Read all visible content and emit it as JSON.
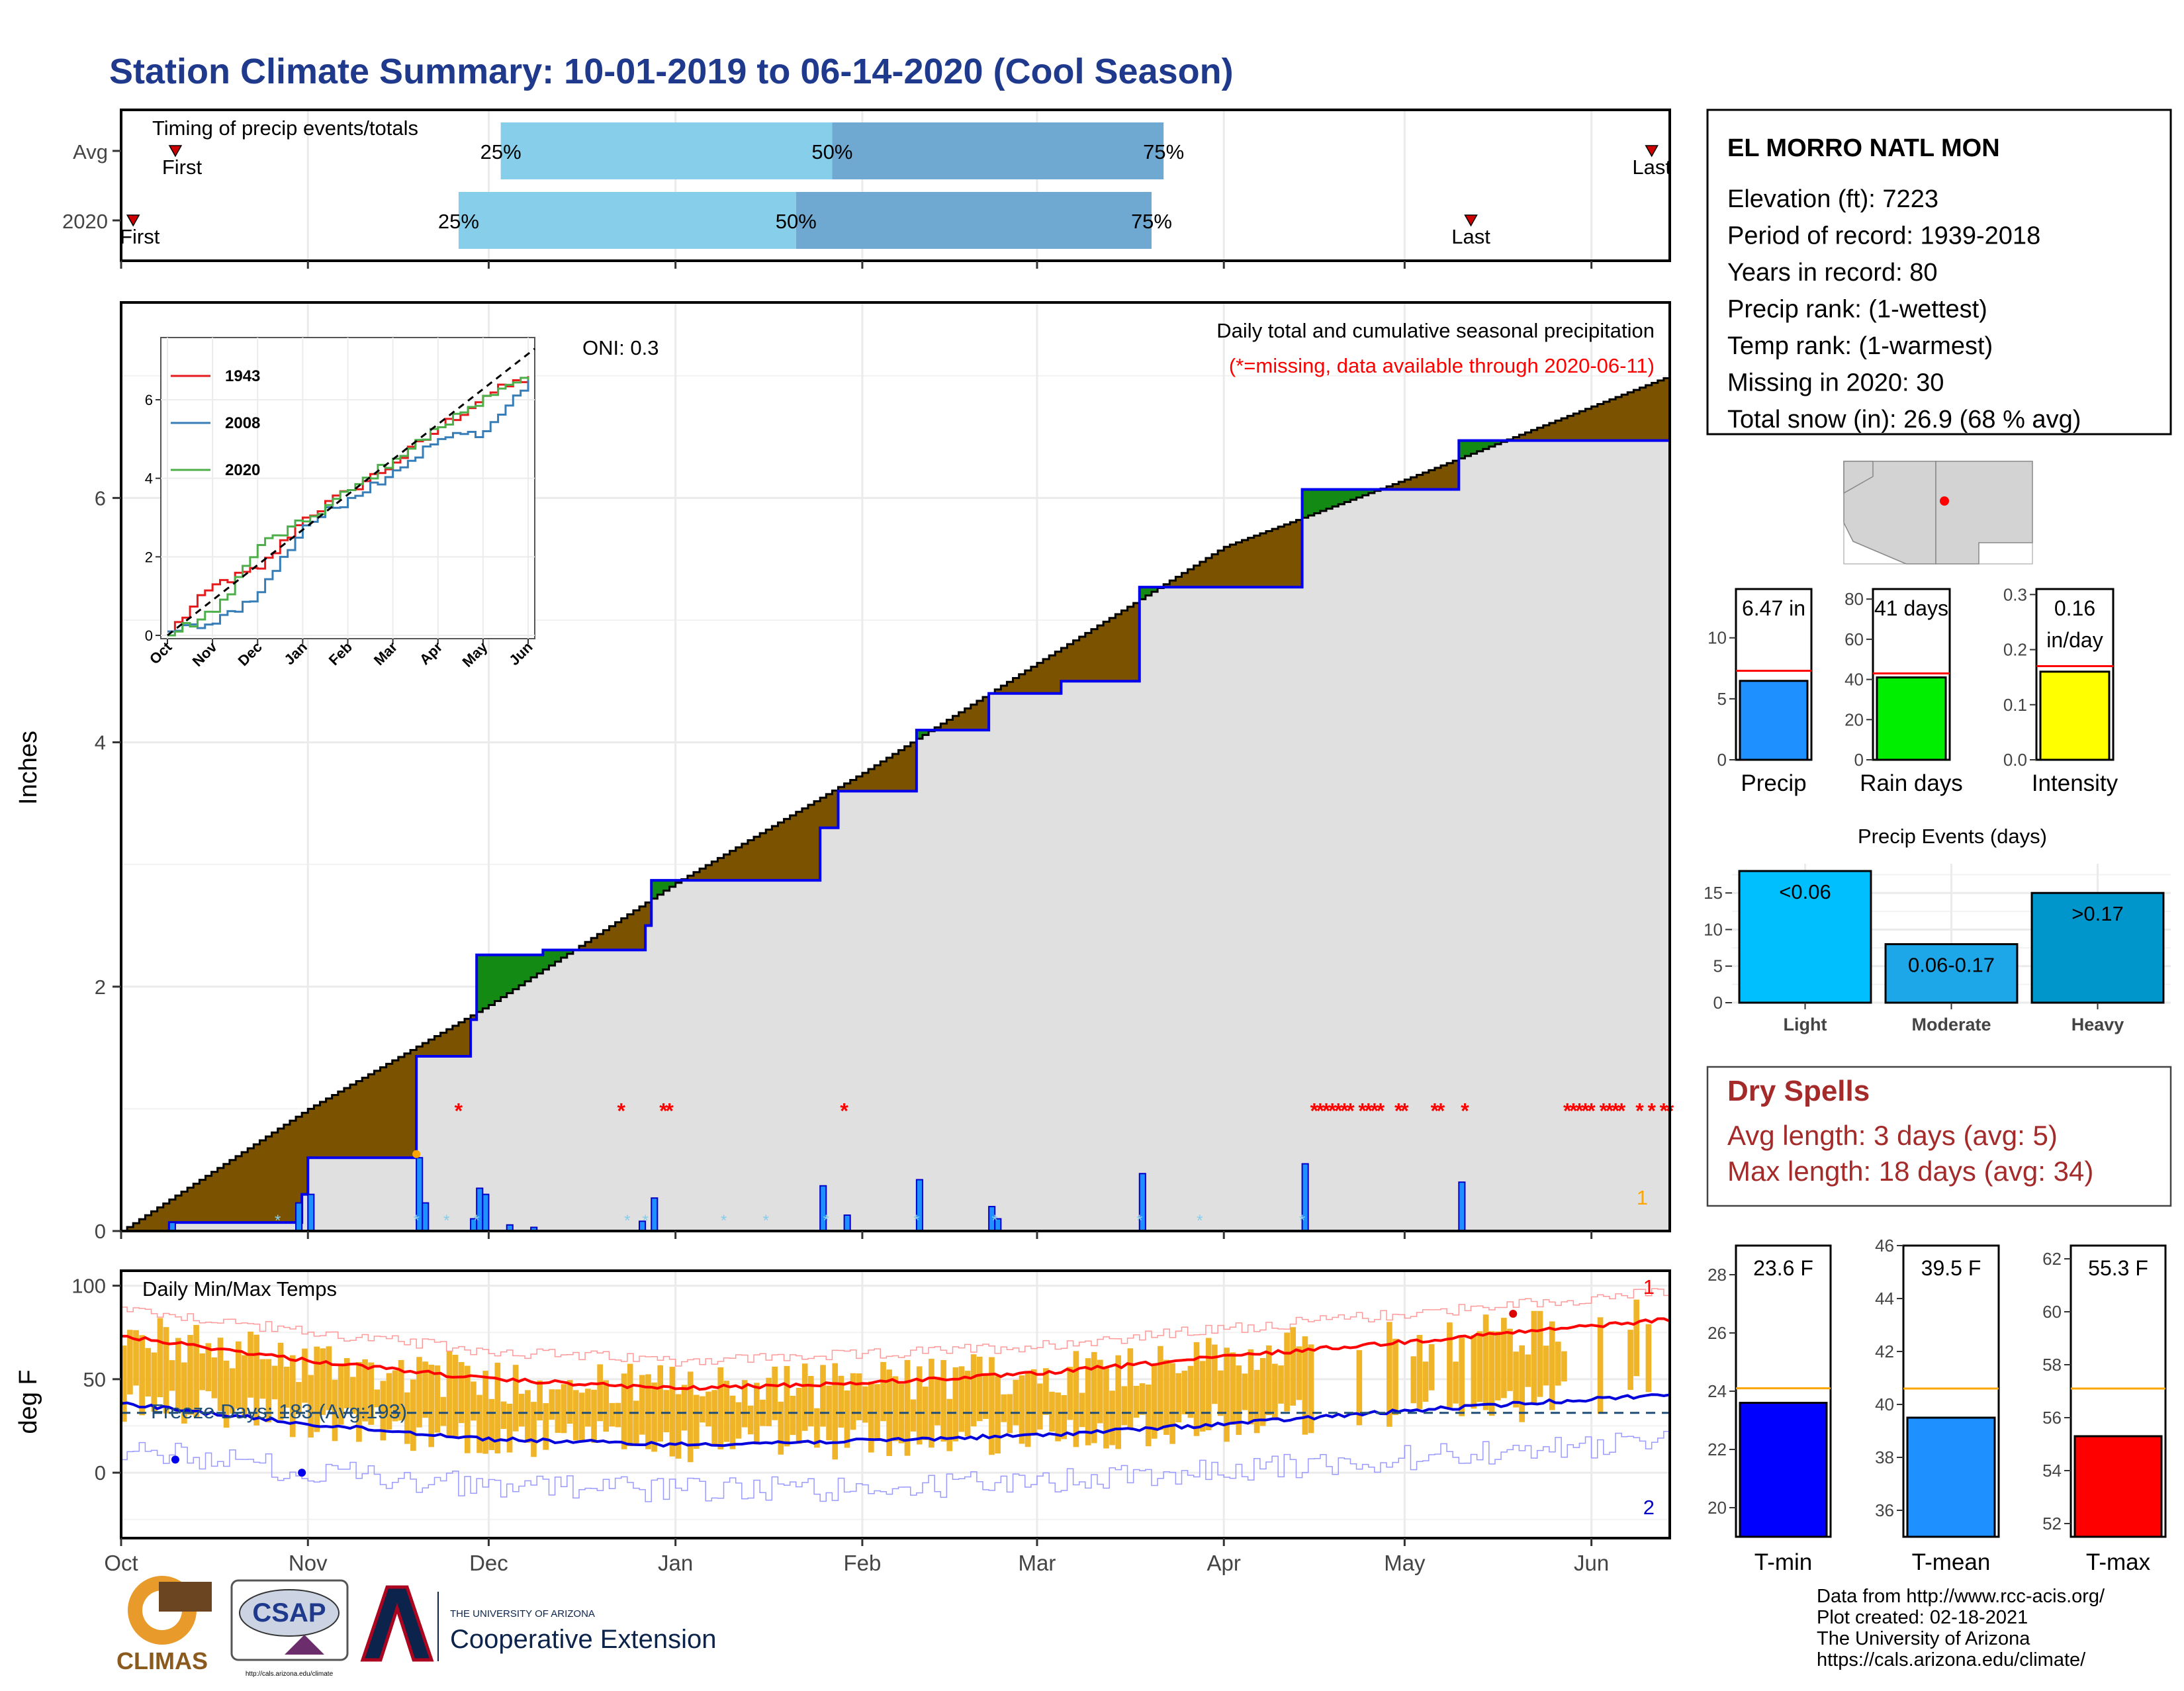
{
  "title": "Station Climate Summary: 10-01-2019 to 06-14-2020 (Cool Season)",
  "colors": {
    "title": "#1f3a8c",
    "brown": "#7a5200",
    "green": "#138a13",
    "gray_fill": "#e0e0e0",
    "blue": "#0000ee",
    "light_blue_bar": "#87ceeb",
    "mid_blue_bar": "#6fa8d0",
    "missing_red": "#ff0000",
    "temp_orange": "#f0b428",
    "tmax_red": "#ff0000",
    "tmin_blue": "#0000dd",
    "dry_spell_red": "#a52a2a"
  },
  "months": [
    "Oct",
    "Nov",
    "Dec",
    "Jan",
    "Feb",
    "Mar",
    "Apr",
    "May",
    "Jun"
  ],
  "timing_panel": {
    "title": "Timing of precip events/totals",
    "rows": [
      {
        "label": "Avg",
        "first_label": "First",
        "last_label": "Last",
        "p25": "25%",
        "p50": "50%",
        "p75": "75%"
      },
      {
        "label": "2020",
        "first_label": "First",
        "last_label": "Last",
        "p25": "25%",
        "p50": "50%",
        "p75": "75%"
      }
    ]
  },
  "station_box": {
    "name": "EL MORRO NATL MON",
    "lines": [
      "Elevation (ft): 7223",
      "Period of record: 1939-2018",
      "Years in record: 80",
      "Precip rank:  (1-wettest)",
      "Temp rank:  (1-warmest)",
      "Missing in 2020: 30",
      "Total snow (in): 26.9 (68 % avg)"
    ]
  },
  "precip_panel": {
    "ylabel": "Inches",
    "oni": "ONI: 0.3",
    "title": "Daily total and cumulative seasonal precipitation",
    "subtitle": "(*=missing, data available through 2020-06-11)",
    "corner_label": "1",
    "y_ticks": [
      "0",
      "2",
      "4",
      "6"
    ]
  },
  "inset": {
    "y_ticks": [
      "0",
      "2",
      "4",
      "6"
    ],
    "x_ticks": [
      "Oct",
      "Nov",
      "Dec",
      "Jan",
      "Feb",
      "Mar",
      "Apr",
      "May",
      "Jun"
    ],
    "legend": [
      "1943",
      "2008",
      "2020"
    ],
    "legend_colors": [
      "#e41a1c",
      "#377eb8",
      "#4daf4a"
    ]
  },
  "temp_panel": {
    "ylabel": "deg F",
    "title": "Daily Min/Max Temps",
    "freeze_label": "Freeze Days: 183 (Avg:193)",
    "corner_top": "1",
    "corner_bottom": "2",
    "y_ticks": [
      "0",
      "50",
      "100"
    ]
  },
  "mini_bars": [
    {
      "value_label": "6.47 in",
      "xlabel": "Precip",
      "y_ticks": [
        "0",
        "5",
        "10"
      ],
      "color": "#1e90ff"
    },
    {
      "value_label": "41 days",
      "xlabel": "Rain days",
      "y_ticks": [
        "0",
        "20",
        "40",
        "60",
        "80"
      ],
      "color": "#00ee00"
    },
    {
      "value_label_1": "0.16",
      "value_label_2": "in/day",
      "xlabel": "Intensity",
      "y_ticks": [
        "0.0",
        "0.1",
        "0.2",
        "0.3"
      ],
      "color": "#ffff00"
    }
  ],
  "events_panel": {
    "title": "Precip Events (days)",
    "y_ticks": [
      "0",
      "5",
      "10",
      "15"
    ],
    "bars": [
      {
        "label": "<0.06",
        "xlabel": "Light",
        "color": "#00bfff"
      },
      {
        "label": "0.06-0.17",
        "xlabel": "Moderate",
        "color": "#1ea7e8"
      },
      {
        "label": ">0.17",
        "xlabel": "Heavy",
        "color": "#0096cc"
      }
    ]
  },
  "dry_spells": {
    "title": "Dry Spells",
    "avg_line": "Avg length: 3 days (avg: 5)",
    "max_line": "Max length: 18 days (avg: 34)"
  },
  "temp_bars": [
    {
      "value_label": "23.6 F",
      "xlabel": "T-min",
      "y_ticks": [
        "20",
        "22",
        "24",
        "26",
        "28"
      ],
      "color": "#0000ff"
    },
    {
      "value_label": "39.5 F",
      "xlabel": "T-mean",
      "y_ticks": [
        "36",
        "38",
        "40",
        "42",
        "44",
        "46"
      ],
      "color": "#1e90ff"
    },
    {
      "value_label": "55.3 F",
      "xlabel": "T-max",
      "y_ticks": [
        "52",
        "54",
        "56",
        "58",
        "60",
        "62"
      ],
      "color": "#ff0000"
    }
  ],
  "footer": {
    "lines": [
      "Data from http://www.rcc-acis.org/",
      "Plot created: 02-18-2021",
      "The University of Arizona",
      "https://cals.arizona.edu/climate/"
    ],
    "climas": "CLIMAS",
    "csap": "CSAP",
    "csap_url": "http://cals.arizona.edu/climate",
    "ua_top": "THE UNIVERSITY OF ARIZONA",
    "ua_bottom": "Cooperative Extension"
  },
  "chart_data": [
    {
      "type": "timing",
      "name": "Timing of precip events/totals",
      "rows": [
        {
          "label": "Avg",
          "first": "Oct 10",
          "p25": "Dec 3",
          "p50": "Jan 27",
          "p75": "Mar 22",
          "last": "Jun 11"
        },
        {
          "label": "2020",
          "first": "Oct 3",
          "p25": "Nov 26",
          "p50": "Jan 21",
          "p75": "Mar 20",
          "last": "May 12"
        }
      ]
    },
    {
      "type": "area",
      "title": "Daily total and cumulative seasonal precipitation",
      "ylabel": "Inches",
      "ylim": [
        0,
        7.6
      ],
      "x_start": "2019-10-01",
      "x_end": "2020-06-14",
      "avg_cumulative": [
        [
          "2019-10-01",
          0
        ],
        [
          "2019-11-01",
          1.0
        ],
        [
          "2019-12-01",
          1.85
        ],
        [
          "2020-01-01",
          2.85
        ],
        [
          "2020-02-01",
          3.75
        ],
        [
          "2020-03-01",
          4.65
        ],
        [
          "2020-04-01",
          5.6
        ],
        [
          "2020-05-01",
          6.15
        ],
        [
          "2020-06-14",
          7.0
        ]
      ],
      "cumulative_2020_steps": [
        [
          "2019-10-01",
          0
        ],
        [
          "2019-10-09",
          0.07
        ],
        [
          "2019-10-29",
          0.07
        ],
        [
          "2019-10-31",
          0.3
        ],
        [
          "2019-11-01",
          0.6
        ],
        [
          "2019-11-18",
          0.6
        ],
        [
          "2019-11-19",
          1.43
        ],
        [
          "2019-11-28",
          1.73
        ],
        [
          "2019-11-29",
          2.26
        ],
        [
          "2019-12-10",
          2.3
        ],
        [
          "2019-12-27",
          2.5
        ],
        [
          "2019-12-28",
          2.87
        ],
        [
          "2020-01-05",
          2.87
        ],
        [
          "2020-01-25",
          3.3
        ],
        [
          "2020-01-28",
          3.6
        ],
        [
          "2020-02-10",
          4.1
        ],
        [
          "2020-02-22",
          4.4
        ],
        [
          "2020-03-05",
          4.5
        ],
        [
          "2020-03-18",
          5.27
        ],
        [
          "2020-04-14",
          6.07
        ],
        [
          "2020-05-10",
          6.47
        ],
        [
          "2020-06-14",
          6.47
        ]
      ],
      "daily_precip": [
        [
          "2019-10-09",
          0.07
        ],
        [
          "2019-10-30",
          0.23
        ],
        [
          "2019-11-01",
          0.3
        ],
        [
          "2019-11-19",
          0.6
        ],
        [
          "2019-11-20",
          0.23
        ],
        [
          "2019-11-28",
          0.1
        ],
        [
          "2019-11-29",
          0.35
        ],
        [
          "2019-11-30",
          0.3
        ],
        [
          "2019-12-04",
          0.05
        ],
        [
          "2019-12-08",
          0.03
        ],
        [
          "2019-12-26",
          0.08
        ],
        [
          "2019-12-28",
          0.27
        ],
        [
          "2020-01-25",
          0.37
        ],
        [
          "2020-01-29",
          0.13
        ],
        [
          "2020-02-10",
          0.42
        ],
        [
          "2020-02-22",
          0.2
        ],
        [
          "2020-02-23",
          0.1
        ],
        [
          "2020-03-18",
          0.47
        ],
        [
          "2020-04-14",
          0.55
        ],
        [
          "2020-05-10",
          0.4
        ]
      ],
      "missing_dates": [
        "2019-11-26",
        "2019-12-23",
        "2019-12-30",
        "2019-12-31",
        "2020-01-29",
        "2020-04-16",
        "2020-04-17",
        "2020-04-18",
        "2020-04-19",
        "2020-04-20",
        "2020-04-21",
        "2020-04-22",
        "2020-04-24",
        "2020-04-25",
        "2020-04-26",
        "2020-04-27",
        "2020-04-30",
        "2020-05-01",
        "2020-05-06",
        "2020-05-07",
        "2020-05-11",
        "2020-05-28",
        "2020-05-29",
        "2020-05-30",
        "2020-05-31",
        "2020-06-01",
        "2020-06-03",
        "2020-06-04",
        "2020-06-05",
        "2020-06-06",
        "2020-06-09",
        "2020-06-11",
        "2020-06-13",
        "2020-06-14"
      ],
      "snow_days": [
        "2019-10-27",
        "2019-11-19",
        "2019-11-24",
        "2019-11-29",
        "2019-12-24",
        "2019-12-27",
        "2020-01-09",
        "2020-01-16",
        "2020-01-26",
        "2020-02-10",
        "2020-02-23",
        "2020-03-18",
        "2020-03-28",
        "2020-04-14"
      ]
    },
    {
      "type": "line",
      "title": "Inset cumulative precipitation",
      "x": [
        "Oct",
        "Nov",
        "Dec",
        "Jan",
        "Feb",
        "Mar",
        "Apr",
        "May",
        "Jun"
      ],
      "series": [
        {
          "name": "1943",
          "values": [
            0.1,
            1.3,
            1.7,
            3.0,
            3.7,
            4.4,
            5.3,
            6.1,
            6.6
          ]
        },
        {
          "name": "2008",
          "values": [
            0.1,
            0.3,
            1.1,
            2.8,
            3.5,
            4.2,
            5.0,
            5.2,
            6.5
          ]
        },
        {
          "name": "2020",
          "values": [
            0.0,
            0.6,
            2.3,
            2.9,
            3.7,
            4.5,
            5.3,
            6.1,
            6.5
          ]
        }
      ],
      "ylim": [
        0,
        7.5
      ]
    },
    {
      "type": "bar",
      "title": "Daily Min/Max Temps",
      "ylabel": "deg F",
      "ylim": [
        -35,
        108
      ],
      "x_start": "2019-10-01",
      "x_end": "2020-06-14",
      "tmax_normal": [
        [
          "2019-10-01",
          73
        ],
        [
          "2019-11-01",
          60
        ],
        [
          "2019-12-01",
          50
        ],
        [
          "2020-01-01",
          45
        ],
        [
          "2020-02-01",
          48
        ],
        [
          "2020-03-01",
          53
        ],
        [
          "2020-04-01",
          62
        ],
        [
          "2020-05-01",
          70
        ],
        [
          "2020-06-14",
          82
        ]
      ],
      "tmin_normal": [
        [
          "2019-10-01",
          37
        ],
        [
          "2019-11-01",
          26
        ],
        [
          "2019-12-01",
          18
        ],
        [
          "2020-01-01",
          15
        ],
        [
          "2020-02-01",
          17
        ],
        [
          "2020-03-01",
          20
        ],
        [
          "2020-04-01",
          26
        ],
        [
          "2020-05-01",
          33
        ],
        [
          "2020-06-14",
          42
        ]
      ],
      "freeze_threshold": 32
    },
    {
      "type": "bar",
      "categories": [
        "Precip"
      ],
      "values": [
        6.47
      ],
      "normal": 7.3,
      "ylim": [
        0,
        14
      ]
    },
    {
      "type": "bar",
      "categories": [
        "Rain days"
      ],
      "values": [
        41
      ],
      "normal": 43,
      "ylim": [
        0,
        85
      ]
    },
    {
      "type": "bar",
      "categories": [
        "Intensity"
      ],
      "values": [
        0.16
      ],
      "normal": 0.17,
      "ylim": [
        0,
        0.31
      ]
    },
    {
      "type": "bar",
      "title": "Precip Events (days)",
      "categories": [
        "Light",
        "Moderate",
        "Heavy"
      ],
      "values": [
        18,
        8,
        15
      ],
      "ylim": [
        0,
        19
      ]
    },
    {
      "type": "bar",
      "categories": [
        "T-min"
      ],
      "values": [
        23.6
      ],
      "normal": 24.1,
      "ylim": [
        19,
        29
      ]
    },
    {
      "type": "bar",
      "categories": [
        "T-mean"
      ],
      "values": [
        39.5
      ],
      "normal": 40.6,
      "ylim": [
        35,
        46
      ]
    },
    {
      "type": "bar",
      "categories": [
        "T-max"
      ],
      "values": [
        55.3
      ],
      "normal": 57.1,
      "ylim": [
        51.5,
        62.5
      ]
    }
  ]
}
